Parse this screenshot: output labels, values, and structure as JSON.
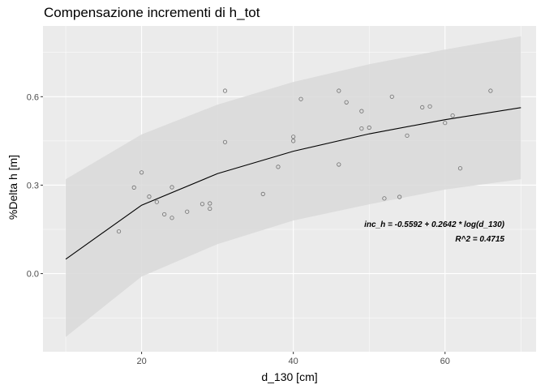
{
  "chart_data": {
    "type": "scatter",
    "title": "Compensazione incrementi di h_tot",
    "xlabel": "d_130 [cm]",
    "ylabel": "%Delta h [m]",
    "xlim": [
      7,
      72
    ],
    "ylim": [
      -0.265,
      0.84
    ],
    "x_ticks": [
      20,
      40,
      60
    ],
    "x_tick_labels": [
      "20",
      "40",
      "60"
    ],
    "y_ticks": [
      0.0,
      0.3,
      0.6
    ],
    "y_tick_labels": [
      "0.0",
      "0.3",
      "0.6"
    ],
    "grid": true,
    "annotations": [
      "inc_h = -0.5592 + 0.2642 * log(d_130)",
      "R^2 = 0.4715"
    ],
    "points": [
      {
        "x": 17,
        "y": 0.143
      },
      {
        "x": 19,
        "y": 0.292
      },
      {
        "x": 20,
        "y": 0.343
      },
      {
        "x": 21,
        "y": 0.261
      },
      {
        "x": 22,
        "y": 0.243
      },
      {
        "x": 23,
        "y": 0.201
      },
      {
        "x": 24,
        "y": 0.189
      },
      {
        "x": 24,
        "y": 0.293
      },
      {
        "x": 26,
        "y": 0.21
      },
      {
        "x": 28,
        "y": 0.236
      },
      {
        "x": 29,
        "y": 0.22
      },
      {
        "x": 29,
        "y": 0.238
      },
      {
        "x": 31,
        "y": 0.62
      },
      {
        "x": 31,
        "y": 0.446
      },
      {
        "x": 36,
        "y": 0.27
      },
      {
        "x": 38,
        "y": 0.362
      },
      {
        "x": 40,
        "y": 0.464
      },
      {
        "x": 40,
        "y": 0.45
      },
      {
        "x": 41,
        "y": 0.592
      },
      {
        "x": 46,
        "y": 0.62
      },
      {
        "x": 46,
        "y": 0.37
      },
      {
        "x": 47,
        "y": 0.581
      },
      {
        "x": 49,
        "y": 0.551
      },
      {
        "x": 49,
        "y": 0.492
      },
      {
        "x": 50,
        "y": 0.495
      },
      {
        "x": 52,
        "y": 0.255
      },
      {
        "x": 53,
        "y": 0.6
      },
      {
        "x": 54,
        "y": 0.26
      },
      {
        "x": 55,
        "y": 0.468
      },
      {
        "x": 57,
        "y": 0.564
      },
      {
        "x": 58,
        "y": 0.567
      },
      {
        "x": 60,
        "y": 0.511
      },
      {
        "x": 61,
        "y": 0.536
      },
      {
        "x": 62,
        "y": 0.357
      },
      {
        "x": 66,
        "y": 0.62
      }
    ],
    "fit_line": {
      "x": [
        10,
        20,
        30,
        40,
        50,
        60,
        70
      ],
      "y": [
        0.049,
        0.232,
        0.339,
        0.415,
        0.474,
        0.522,
        0.563
      ]
    },
    "band": {
      "x": [
        10,
        20,
        30,
        40,
        50,
        60,
        70
      ],
      "lower": [
        -0.215,
        -0.01,
        0.1,
        0.18,
        0.235,
        0.285,
        0.32
      ],
      "upper": [
        0.32,
        0.472,
        0.573,
        0.65,
        0.71,
        0.76,
        0.805
      ]
    },
    "colors": {
      "panel": "#ebebeb",
      "grid_major": "#ffffff",
      "band": "#d9d9d9",
      "line": "#000000",
      "points": "#6e6e6e"
    }
  }
}
